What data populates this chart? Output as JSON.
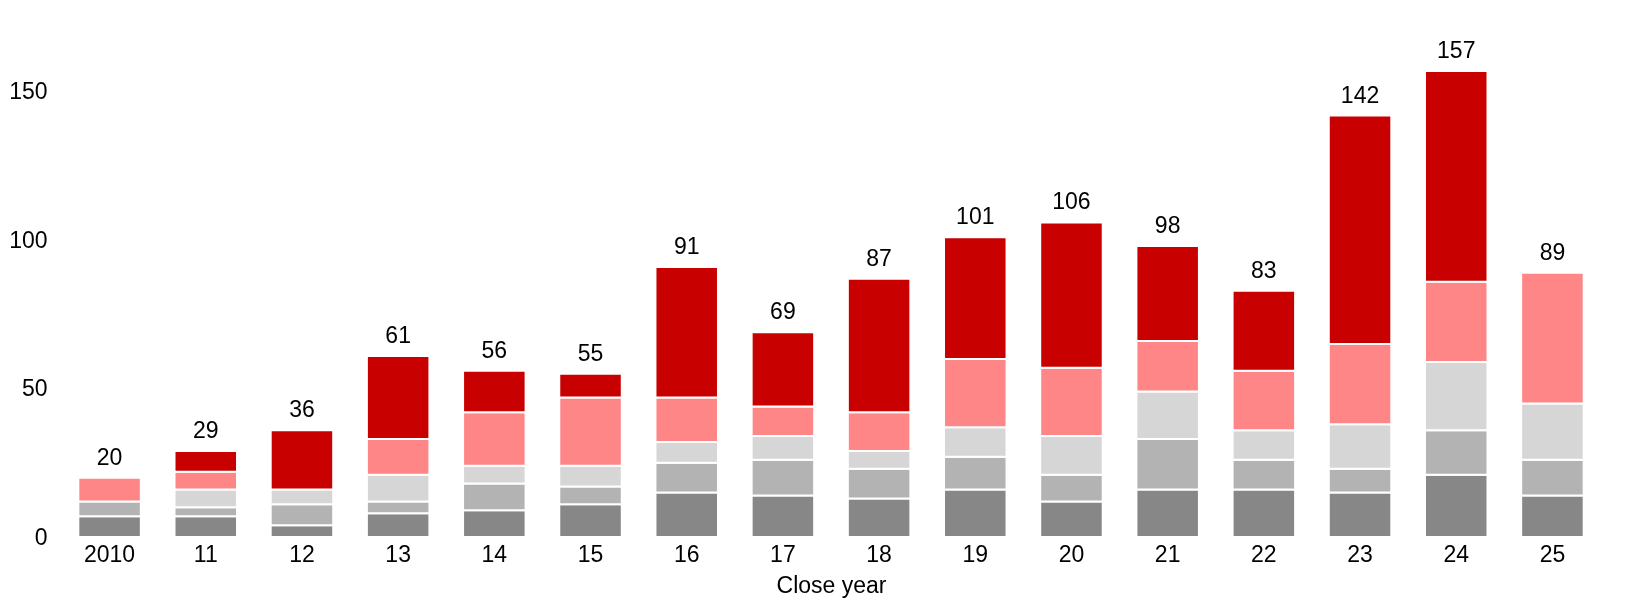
{
  "chart_data": {
    "type": "bar",
    "stacked": true,
    "xlabel": "Close year",
    "categories": [
      "2010",
      "11",
      "12",
      "13",
      "14",
      "15",
      "16",
      "17",
      "18",
      "19",
      "20",
      "21",
      "22",
      "23",
      "24",
      "25"
    ],
    "series": [
      {
        "color": "#878787",
        "values": [
          7,
          7,
          4,
          8,
          9,
          11,
          15,
          14,
          13,
          16,
          12,
          16,
          16,
          15,
          21,
          14
        ]
      },
      {
        "color": "#b3b3b3",
        "values": [
          5,
          3,
          7,
          4,
          9,
          6,
          10,
          12,
          10,
          11,
          9,
          17,
          10,
          8,
          15,
          12
        ]
      },
      {
        "color": "#d6d6d6",
        "values": [
          null,
          6,
          5,
          9,
          6,
          7,
          7,
          8,
          6,
          10,
          13,
          16,
          10,
          15,
          23,
          19
        ]
      },
      {
        "color": "#ff8686",
        "values": [
          8,
          6,
          null,
          12,
          18,
          23,
          15,
          10,
          13,
          23,
          23,
          17,
          20,
          27,
          27,
          44
        ]
      },
      {
        "color": "#c80000",
        "values": [
          null,
          7,
          20,
          28,
          14,
          8,
          44,
          25,
          45,
          41,
          49,
          32,
          27,
          77,
          71,
          null
        ]
      }
    ],
    "totals": [
      "20",
      "29",
      "36",
      "61",
      "56",
      "55",
      "91",
      "69",
      "87",
      "101",
      "106",
      "98",
      "83",
      "142",
      "157",
      "89"
    ],
    "ylim": [
      0,
      157
    ],
    "yticks": [
      0,
      50,
      100,
      150
    ],
    "grid": false
  }
}
